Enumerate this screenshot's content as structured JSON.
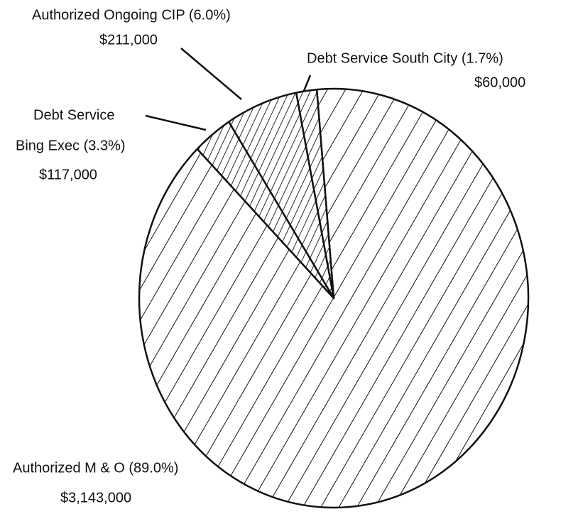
{
  "chart_data": {
    "type": "pie",
    "categories": [
      [
        "Authorized M & O (89.0%)"
      ],
      [
        "Debt Service",
        "Bing Exec (3.3%)"
      ],
      [
        "Authorized Ongoing CIP (6.0%)"
      ],
      [
        "Debt Service South City (1.7%)"
      ]
    ],
    "values": [
      3143000,
      117000,
      211000,
      60000
    ],
    "value_labels": [
      "$3,143,000",
      "$117,000",
      "$211,000",
      "$60,000"
    ]
  }
}
